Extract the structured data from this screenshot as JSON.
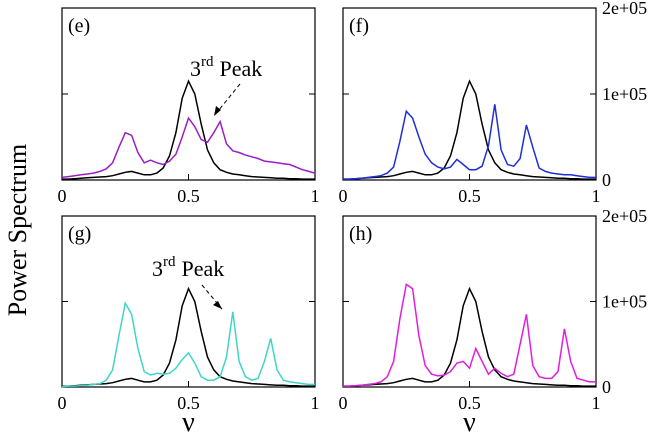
{
  "ylabel": "Power Spectrum",
  "chart_data": [
    {
      "type": "line",
      "title": "(e)",
      "x": [
        0,
        0.025,
        0.05,
        0.075,
        0.1,
        0.125,
        0.15,
        0.175,
        0.2,
        0.225,
        0.25,
        0.275,
        0.3,
        0.325,
        0.35,
        0.375,
        0.4,
        0.425,
        0.45,
        0.475,
        0.5,
        0.525,
        0.55,
        0.575,
        0.6,
        0.625,
        0.65,
        0.675,
        0.7,
        0.725,
        0.75,
        0.775,
        0.8,
        0.825,
        0.85,
        0.875,
        0.9,
        0.925,
        0.95,
        0.975,
        1
      ],
      "xlim": [
        0,
        1
      ],
      "xticks": [
        0,
        0.5,
        1
      ],
      "ylim": [
        0,
        200000
      ],
      "yticks": [
        0,
        100000,
        200000
      ],
      "annotation": [
        "3",
        "rd",
        "Peak"
      ],
      "series": [
        {
          "color": "#000000",
          "values": [
            1000,
            1000,
            1500,
            2000,
            2500,
            3000,
            3500,
            4000,
            5000,
            7000,
            9000,
            10000,
            8000,
            6000,
            6000,
            8000,
            14000,
            28000,
            55000,
            95000,
            115000,
            100000,
            65000,
            35000,
            20000,
            12000,
            9000,
            7000,
            6000,
            5000,
            4000,
            3500,
            3000,
            2500,
            2000,
            2000,
            1500,
            1500,
            1000,
            1000,
            1000
          ]
        },
        {
          "color": "#9a1fc4",
          "values": [
            3000,
            4000,
            5000,
            6000,
            7000,
            8000,
            10000,
            13000,
            20000,
            38000,
            55000,
            52000,
            32000,
            20000,
            23000,
            20000,
            18000,
            22000,
            30000,
            50000,
            72000,
            62000,
            47000,
            44000,
            55000,
            68000,
            42000,
            34000,
            32000,
            29000,
            27000,
            25000,
            22000,
            21000,
            20000,
            19000,
            18000,
            15000,
            12000,
            10000,
            8000
          ]
        }
      ]
    },
    {
      "type": "line",
      "title": "(f)",
      "x": [
        0,
        0.025,
        0.05,
        0.075,
        0.1,
        0.125,
        0.15,
        0.175,
        0.2,
        0.225,
        0.25,
        0.275,
        0.3,
        0.325,
        0.35,
        0.375,
        0.4,
        0.425,
        0.45,
        0.475,
        0.5,
        0.525,
        0.55,
        0.575,
        0.6,
        0.625,
        0.65,
        0.675,
        0.7,
        0.725,
        0.75,
        0.775,
        0.8,
        0.825,
        0.85,
        0.875,
        0.9,
        0.925,
        0.95,
        0.975,
        1
      ],
      "xlim": [
        0,
        1
      ],
      "xticks": [
        0,
        0.5,
        1
      ],
      "ylim": [
        0,
        200000
      ],
      "yticks": [
        0,
        {
          "value": 100000,
          "label": "1e+05"
        },
        {
          "value": 200000,
          "label": "2e+05"
        }
      ],
      "series": [
        {
          "color": "#000000",
          "values": [
            1000,
            1000,
            1500,
            2000,
            2500,
            3000,
            3500,
            4000,
            5000,
            7000,
            9000,
            10000,
            8000,
            6000,
            6000,
            8000,
            14000,
            28000,
            55000,
            95000,
            115000,
            100000,
            65000,
            35000,
            20000,
            12000,
            9000,
            7000,
            6000,
            5000,
            4000,
            3500,
            3000,
            2500,
            2000,
            2000,
            1500,
            1500,
            1000,
            1000,
            1000
          ]
        },
        {
          "color": "#1f2fd6",
          "values": [
            1000,
            1000,
            1500,
            2000,
            3000,
            4000,
            5000,
            8000,
            15000,
            45000,
            80000,
            72000,
            50000,
            30000,
            20000,
            15000,
            13000,
            15000,
            24000,
            18000,
            12000,
            12000,
            16000,
            40000,
            88000,
            35000,
            18000,
            16000,
            25000,
            64000,
            38000,
            14000,
            10000,
            8000,
            7000,
            6000,
            6000,
            5000,
            4000,
            3000,
            3000
          ]
        }
      ]
    },
    {
      "type": "line",
      "title": "(g)",
      "xlabel": "ν",
      "x": [
        0,
        0.025,
        0.05,
        0.075,
        0.1,
        0.125,
        0.15,
        0.175,
        0.2,
        0.225,
        0.25,
        0.275,
        0.3,
        0.325,
        0.35,
        0.375,
        0.4,
        0.425,
        0.45,
        0.475,
        0.5,
        0.525,
        0.55,
        0.575,
        0.6,
        0.625,
        0.65,
        0.675,
        0.7,
        0.725,
        0.75,
        0.775,
        0.8,
        0.825,
        0.85,
        0.875,
        0.9,
        0.925,
        0.95,
        0.975,
        1
      ],
      "xlim": [
        0,
        1
      ],
      "xticks": [
        0,
        0.5,
        1
      ],
      "ylim": [
        0,
        200000
      ],
      "yticks": [
        0,
        100000,
        200000
      ],
      "annotation": [
        "3",
        "rd",
        "Peak"
      ],
      "series": [
        {
          "color": "#000000",
          "values": [
            1000,
            1000,
            1500,
            2000,
            2500,
            3000,
            3500,
            4000,
            5000,
            7000,
            9000,
            10000,
            8000,
            6000,
            6000,
            8000,
            14000,
            28000,
            55000,
            95000,
            115000,
            100000,
            65000,
            35000,
            20000,
            12000,
            9000,
            7000,
            6000,
            5000,
            4000,
            3500,
            3000,
            2500,
            2000,
            2000,
            1500,
            1500,
            1000,
            1000,
            1000
          ]
        },
        {
          "color": "#3fd6c8",
          "values": [
            500,
            1000,
            1000,
            1500,
            2000,
            3000,
            4000,
            8000,
            20000,
            60000,
            98000,
            85000,
            45000,
            18000,
            14000,
            16000,
            15000,
            16000,
            22000,
            32000,
            40000,
            28000,
            12000,
            8000,
            8000,
            12000,
            35000,
            88000,
            30000,
            12000,
            8000,
            10000,
            30000,
            57000,
            20000,
            8000,
            6000,
            5000,
            4000,
            3000,
            3000
          ]
        }
      ]
    },
    {
      "type": "line",
      "title": "(h)",
      "xlabel": "ν",
      "x": [
        0,
        0.025,
        0.05,
        0.075,
        0.1,
        0.125,
        0.15,
        0.175,
        0.2,
        0.225,
        0.25,
        0.275,
        0.3,
        0.325,
        0.35,
        0.375,
        0.4,
        0.425,
        0.45,
        0.475,
        0.5,
        0.525,
        0.55,
        0.575,
        0.6,
        0.625,
        0.65,
        0.675,
        0.7,
        0.725,
        0.75,
        0.775,
        0.8,
        0.825,
        0.85,
        0.875,
        0.9,
        0.925,
        0.95,
        0.975,
        1
      ],
      "xlim": [
        0,
        1
      ],
      "xticks": [
        0,
        0.5,
        1
      ],
      "ylim": [
        0,
        200000
      ],
      "yticks": [
        0,
        {
          "value": 100000,
          "label": "1e+05"
        },
        {
          "value": 200000,
          "label": "2e+05"
        }
      ],
      "series": [
        {
          "color": "#000000",
          "values": [
            1000,
            1000,
            1500,
            2000,
            2500,
            3000,
            3500,
            4000,
            5000,
            7000,
            9000,
            10000,
            8000,
            6000,
            6000,
            8000,
            14000,
            28000,
            55000,
            95000,
            115000,
            100000,
            65000,
            35000,
            20000,
            12000,
            9000,
            7000,
            6000,
            5000,
            4000,
            3500,
            3000,
            2500,
            2000,
            2000,
            1500,
            1500,
            1000,
            1000,
            1000
          ]
        },
        {
          "color": "#e01ee0",
          "values": [
            1000,
            1000,
            1500,
            2000,
            3000,
            4000,
            6000,
            12000,
            30000,
            80000,
            120000,
            115000,
            60000,
            25000,
            15000,
            13000,
            14000,
            18000,
            28000,
            30000,
            22000,
            45000,
            30000,
            15000,
            22000,
            16000,
            12000,
            15000,
            50000,
            85000,
            25000,
            12000,
            10000,
            10000,
            18000,
            68000,
            30000,
            10000,
            8000,
            6000,
            6000
          ]
        }
      ]
    }
  ]
}
